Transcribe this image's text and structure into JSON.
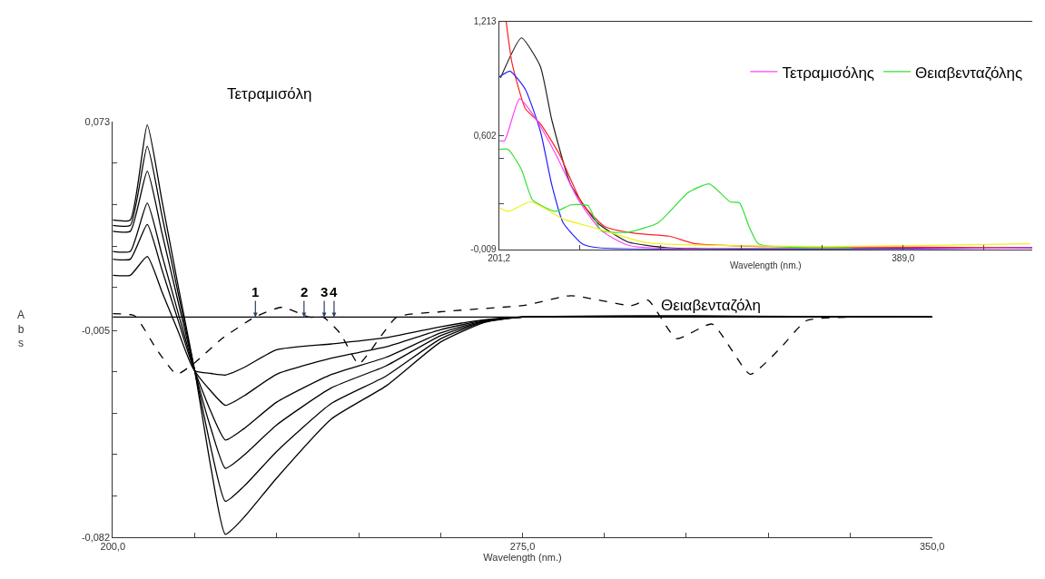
{
  "chart_data": [
    {
      "type": "line",
      "title": "Τετραμισόλη",
      "xlabel": "Wavelength (nm.)",
      "ylabel": "Abs",
      "xlim": [
        200,
        350
      ],
      "ylim": [
        -0.082,
        0.073
      ],
      "xticks": [
        {
          "value": 200,
          "label": "200,0"
        },
        {
          "value": 215,
          "label": null
        },
        {
          "value": 230,
          "label": null
        },
        {
          "value": 245,
          "label": null
        },
        {
          "value": 260,
          "label": null
        },
        {
          "value": 275,
          "label": "275,0"
        },
        {
          "value": 290,
          "label": null
        },
        {
          "value": 305,
          "label": null
        },
        {
          "value": 320,
          "label": null
        },
        {
          "value": 335,
          "label": null
        },
        {
          "value": 350,
          "label": "350,0"
        }
      ],
      "yticks": [
        {
          "value": 0.073,
          "label": "0,073"
        },
        {
          "value": 0.0575,
          "label": null
        },
        {
          "value": 0.042,
          "label": null
        },
        {
          "value": 0.0265,
          "label": null
        },
        {
          "value": 0.011,
          "label": null
        },
        {
          "value": -0.005,
          "label": "-0,005"
        },
        {
          "value": -0.0204,
          "label": null
        },
        {
          "value": -0.0358,
          "label": null
        },
        {
          "value": -0.0512,
          "label": null
        },
        {
          "value": -0.0666,
          "label": null
        },
        {
          "value": -0.082,
          "label": "-0,082"
        }
      ],
      "grid": false,
      "legend": false,
      "x": [
        200,
        203.2,
        206.3,
        209,
        212,
        215,
        218,
        220.6,
        224,
        230,
        240,
        250,
        260,
        268,
        275,
        350
      ],
      "series": [
        {
          "color": "#000000",
          "values": [
            0.0156,
            0.0156,
            0.0226,
            0.0094,
            -0.0055,
            -0.02,
            -0.021,
            -0.0216,
            -0.0188,
            -0.0122,
            -0.01,
            -0.0077,
            -0.0036,
            -0.001,
            0,
            0
          ]
        },
        {
          "color": "#000000",
          "values": [
            0.0216,
            0.0216,
            0.0345,
            0.0176,
            -0.0015,
            -0.02,
            -0.0277,
            -0.0329,
            -0.0294,
            -0.0213,
            -0.0153,
            -0.0111,
            -0.0047,
            -0.0012,
            0,
            0
          ]
        },
        {
          "color": "#000000",
          "values": [
            0.0245,
            0.0245,
            0.0425,
            0.0231,
            0.0012,
            -0.02,
            -0.0355,
            -0.0458,
            -0.0416,
            -0.0317,
            -0.0214,
            -0.015,
            -0.0059,
            -0.0014,
            0,
            0
          ]
        },
        {
          "color": "#000000",
          "values": [
            0.032,
            0.032,
            0.0544,
            0.0313,
            0.0053,
            -0.02,
            -0.0418,
            -0.0564,
            -0.0515,
            -0.0402,
            -0.0264,
            -0.0182,
            -0.0069,
            -0.0016,
            0,
            0
          ]
        },
        {
          "color": "#000000",
          "values": [
            0.0342,
            0.0342,
            0.0637,
            0.0378,
            0.0085,
            -0.02,
            -0.0492,
            -0.0687,
            -0.0631,
            -0.0501,
            -0.0322,
            -0.022,
            -0.0081,
            -0.0018,
            0,
            0
          ]
        },
        {
          "color": "#000000",
          "values": [
            0.0362,
            0.0362,
            0.0717,
            0.0433,
            0.0112,
            -0.02,
            -0.0566,
            -0.081,
            -0.0747,
            -0.06,
            -0.038,
            -0.0257,
            -0.0093,
            -0.002,
            0,
            0
          ]
        },
        {
          "name": "Θειαβενταζόλη",
          "color": "#000000",
          "line_style": "dashed",
          "x": [
            200,
            204,
            208,
            211.7,
            215,
            220,
            226,
            231,
            236,
            238.5,
            241.6,
            245,
            247,
            252,
            260,
            275.7,
            283.8,
            295,
            298,
            303.2,
            309.7,
            316.7,
            322,
            327,
            335,
            350
          ],
          "values": [
            0.0013,
            0.0005,
            -0.012,
            -0.0213,
            -0.017,
            -0.008,
            0,
            0.0037,
            0,
            0,
            -0.006,
            -0.0175,
            -0.013,
            0,
            0.002,
            0.0045,
            0.008,
            0.0043,
            0.0063,
            -0.008,
            -0.0026,
            -0.0213,
            -0.012,
            -0.0013,
            0,
            0
          ]
        }
      ],
      "ref_lines": [
        {
          "axis": "y",
          "value": 0,
          "color": "#000000",
          "line_style": "solid"
        }
      ],
      "annotations": [
        {
          "text": "1",
          "x": 226.1,
          "y": 0
        },
        {
          "text": "2",
          "x": 235,
          "y": 0
        },
        {
          "text": "3",
          "x": 238.7,
          "y": 0
        },
        {
          "text": "4",
          "x": 240.5,
          "y": 0
        }
      ]
    },
    {
      "type": "line",
      "xlabel": "Wavelength (nm.)",
      "xlim": [
        201.2,
        449
      ],
      "ylim": [
        -0.009,
        1.213
      ],
      "xticks": [
        {
          "value": 201.2,
          "label": "201,2"
        },
        {
          "value": 238.8,
          "label": null
        },
        {
          "value": 276.4,
          "label": null
        },
        {
          "value": 313.9,
          "label": null
        },
        {
          "value": 351.4,
          "label": null
        },
        {
          "value": 389.0,
          "label": "389,0"
        },
        {
          "value": 426.6,
          "label": null
        }
      ],
      "yticks": [
        {
          "value": -0.009,
          "label": "-0,009"
        },
        {
          "value": 0.235,
          "label": null
        },
        {
          "value": 0.48,
          "label": null
        },
        {
          "value": 0.602,
          "label": "0,602"
        },
        {
          "value": 1.213,
          "label": "1,213"
        }
      ],
      "grid": false,
      "legend": "top right",
      "series": [
        {
          "color": "#222222",
          "x": [
            201.9,
            211.6,
            220.4,
            225.7,
            234.5,
            246.9,
            260.9,
            280,
            449
          ],
          "values": [
            0.911,
            1.125,
            0.972,
            0.686,
            0.338,
            0.134,
            0.032,
            0,
            0
          ]
        },
        {
          "color": "#ff2020",
          "x": [
            204.5,
            207.2,
            213.4,
            220.4,
            229.2,
            239.9,
            250.4,
            264.6,
            280.4,
            292.6,
            322.6,
            449
          ],
          "values": [
            1.213,
            0.992,
            0.747,
            0.665,
            0.502,
            0.235,
            0.113,
            0.077,
            0.062,
            0.021,
            0.007,
            0
          ]
        },
        {
          "color": "#2020ff",
          "x": [
            201.2,
            206.3,
            213.4,
            220.4,
            225.7,
            231,
            239.9,
            247.5,
            449
          ],
          "values": [
            0.915,
            0.947,
            0.849,
            0.625,
            0.338,
            0.134,
            0.021,
            0,
            0
          ]
        },
        {
          "name": "Τετραμισόλης",
          "color": "#ff40ff",
          "x": [
            201.2,
            203.8,
            210.7,
            218.6,
            227.5,
            238.1,
            248.6,
            262,
            449
          ],
          "values": [
            0.574,
            0.574,
            0.798,
            0.686,
            0.502,
            0.256,
            0.093,
            0.011,
            0
          ]
        },
        {
          "name": "Θειαβενταζόλης",
          "color": "#30e030",
          "x": [
            201.2,
            205.4,
            211.6,
            216.8,
            227.5,
            234.5,
            242.5,
            248.6,
            261,
            275.1,
            289.2,
            298.9,
            308.6,
            313,
            317.4,
            321.8,
            365
          ],
          "values": [
            0.528,
            0.528,
            0.42,
            0.256,
            0.195,
            0.23,
            0.226,
            0.093,
            0.083,
            0.134,
            0.297,
            0.342,
            0.246,
            0.24,
            0.113,
            0.021,
            0
          ]
        },
        {
          "color": "#f0f020",
          "x": [
            201.2,
            205.4,
            216,
            231,
            246.9,
            269.8,
            349.2,
            448
          ],
          "values": [
            0.215,
            0.195,
            0.246,
            0.154,
            0.103,
            0.027,
            0.007,
            0.021
          ]
        }
      ]
    }
  ]
}
